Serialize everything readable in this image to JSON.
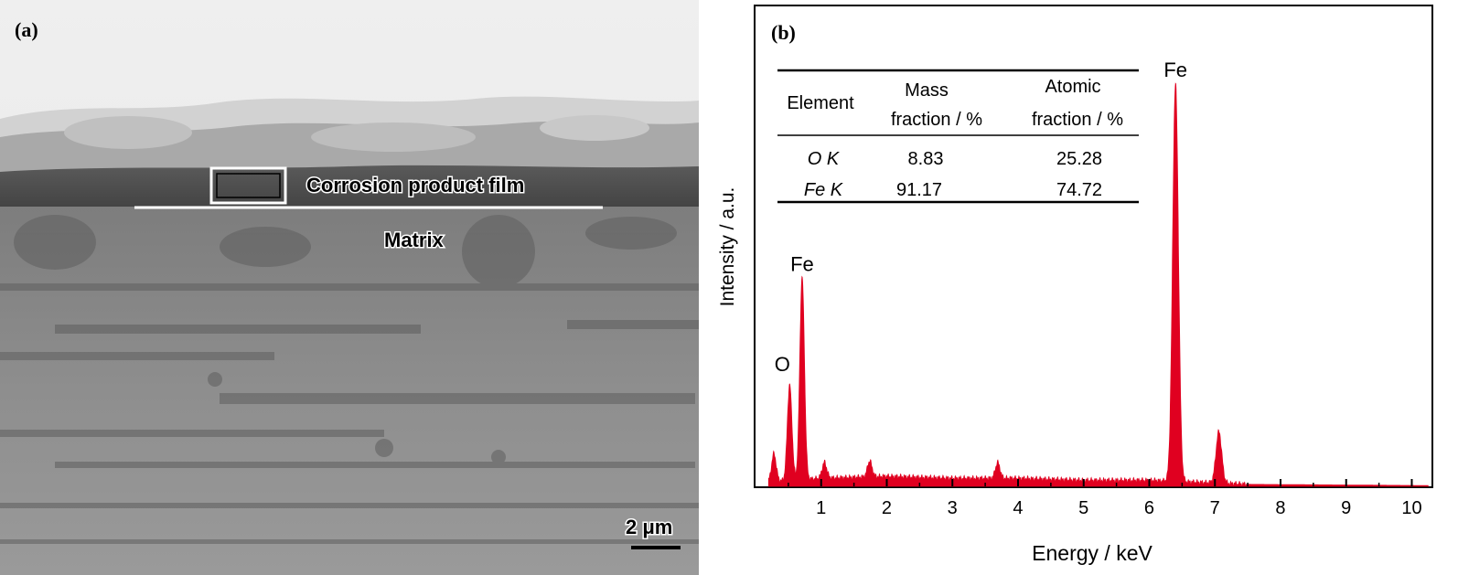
{
  "panel_a": {
    "label": "(a)",
    "annotation_film": "Corrosion product film",
    "annotation_matrix": "Matrix",
    "scale_bar": "2 μm"
  },
  "panel_b": {
    "label": "(b)",
    "table": {
      "headers": [
        [
          "Element"
        ],
        [
          "Mass",
          "fraction / %"
        ],
        [
          "Atomic",
          "fraction / %"
        ]
      ],
      "rows": [
        {
          "element": "O K",
          "mass": "8.83",
          "atomic": "25.28"
        },
        {
          "element": "Fe K",
          "mass": "91.17",
          "atomic": "74.72"
        }
      ]
    }
  },
  "chart_data": {
    "type": "line",
    "xlabel": "Energy / keV",
    "ylabel": "Intensity / a.u.",
    "xlim": [
      0,
      10.3
    ],
    "ylim": [
      0,
      100
    ],
    "xticks": [
      "1",
      "2",
      "3",
      "4",
      "5",
      "6",
      "7",
      "8",
      "9",
      "10"
    ],
    "series_color": "#e00020",
    "peaks": [
      {
        "energy": 0.52,
        "intensity": 24,
        "label": "O"
      },
      {
        "energy": 0.71,
        "intensity": 51,
        "label": "Fe"
      },
      {
        "energy": 6.4,
        "intensity": 100,
        "label": "Fe"
      },
      {
        "energy": 7.06,
        "intensity": 13,
        "label": ""
      }
    ],
    "minor_peaks": [
      {
        "energy": 0.28,
        "intensity": 7
      },
      {
        "energy": 1.05,
        "intensity": 4
      },
      {
        "energy": 1.74,
        "intensity": 4
      },
      {
        "energy": 3.69,
        "intensity": 4
      }
    ],
    "background": [
      {
        "energy": 0.1,
        "intensity": 1
      },
      {
        "energy": 1.0,
        "intensity": 2
      },
      {
        "energy": 2.0,
        "intensity": 2.5
      },
      {
        "energy": 3.0,
        "intensity": 2
      },
      {
        "energy": 4.0,
        "intensity": 2
      },
      {
        "energy": 5.0,
        "intensity": 1.5
      },
      {
        "energy": 6.0,
        "intensity": 1.5
      },
      {
        "energy": 7.5,
        "intensity": 0.5
      },
      {
        "energy": 10.2,
        "intensity": 0.2
      }
    ]
  }
}
